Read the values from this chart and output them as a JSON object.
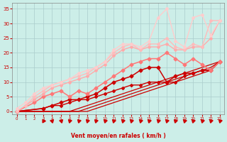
{
  "bg_color": "#cceee8",
  "grid_color": "#aacccc",
  "xlabel": "Vent moyen/en rafales ( km/h )",
  "xlabel_color": "#cc0000",
  "tick_color": "#cc0000",
  "xlim": [
    -0.5,
    23.5
  ],
  "ylim": [
    -1,
    37
  ],
  "xticks": [
    0,
    1,
    2,
    3,
    4,
    5,
    6,
    7,
    8,
    9,
    10,
    11,
    12,
    13,
    14,
    15,
    16,
    17,
    18,
    19,
    20,
    21,
    22,
    23
  ],
  "yticks": [
    0,
    5,
    10,
    15,
    20,
    25,
    30,
    35
  ],
  "lines": [
    {
      "comment": "straight line 1 - dark red, nearly linear 0->17",
      "x": [
        0,
        1,
        2,
        3,
        4,
        5,
        6,
        7,
        8,
        9,
        10,
        11,
        12,
        13,
        14,
        15,
        16,
        17,
        18,
        19,
        20,
        21,
        22,
        23
      ],
      "y": [
        0,
        0,
        0,
        0,
        0,
        0,
        0,
        0,
        0,
        1,
        2,
        3,
        4,
        5,
        6,
        7,
        8,
        9,
        10,
        11,
        12,
        13,
        14,
        17
      ],
      "color": "#cc0000",
      "lw": 0.9,
      "marker": null,
      "ms": 0
    },
    {
      "comment": "straight line 2 - dark red slightly above",
      "x": [
        0,
        1,
        2,
        3,
        4,
        5,
        6,
        7,
        8,
        9,
        10,
        11,
        12,
        13,
        14,
        15,
        16,
        17,
        18,
        19,
        20,
        21,
        22,
        23
      ],
      "y": [
        0,
        0,
        0,
        0,
        0,
        0,
        0,
        0,
        1,
        2,
        3,
        4,
        5,
        6,
        7,
        8,
        9,
        10,
        11,
        12,
        13,
        14,
        15,
        17
      ],
      "color": "#cc0000",
      "lw": 0.9,
      "marker": null,
      "ms": 0
    },
    {
      "comment": "straight line 3 - dark red slightly higher",
      "x": [
        0,
        1,
        2,
        3,
        4,
        5,
        6,
        7,
        8,
        9,
        10,
        11,
        12,
        13,
        14,
        15,
        16,
        17,
        18,
        19,
        20,
        21,
        22,
        23
      ],
      "y": [
        0,
        0,
        0,
        0,
        0,
        0,
        0,
        1,
        2,
        3,
        4,
        5,
        6,
        7,
        8,
        9,
        10,
        11,
        12,
        13,
        14,
        15,
        16,
        17
      ],
      "color": "#cc0000",
      "lw": 0.9,
      "marker": null,
      "ms": 0
    },
    {
      "comment": "jagged dark red with markers - lower group",
      "x": [
        0,
        3,
        4,
        5,
        6,
        7,
        8,
        9,
        10,
        11,
        12,
        13,
        14,
        15,
        16,
        17,
        18,
        19,
        20,
        21,
        22,
        23
      ],
      "y": [
        0,
        1,
        2,
        2,
        3,
        4,
        4,
        5,
        6,
        7,
        8,
        9,
        9,
        10,
        10,
        10,
        10,
        12,
        13,
        14,
        14,
        17
      ],
      "color": "#cc0000",
      "lw": 1.0,
      "marker": "D",
      "ms": 2.0
    },
    {
      "comment": "jagged dark red with markers - middle with dip",
      "x": [
        0,
        3,
        4,
        5,
        6,
        7,
        8,
        9,
        10,
        11,
        12,
        13,
        14,
        15,
        16,
        17,
        18,
        19,
        20,
        21,
        22,
        23
      ],
      "y": [
        0,
        1,
        2,
        3,
        4,
        4,
        5,
        6,
        8,
        10,
        11,
        12,
        14,
        15,
        15,
        10,
        12,
        13,
        13,
        14,
        14,
        17
      ],
      "color": "#cc0000",
      "lw": 1.1,
      "marker": "D",
      "ms": 2.5
    },
    {
      "comment": "medium pink with diamond markers - moderate wind",
      "x": [
        0,
        2,
        3,
        4,
        5,
        6,
        7,
        8,
        9,
        10,
        11,
        12,
        13,
        14,
        15,
        16,
        17,
        18,
        19,
        20,
        21,
        22,
        23
      ],
      "y": [
        0,
        3,
        5,
        6,
        7,
        5,
        7,
        6,
        8,
        10,
        12,
        14,
        16,
        17,
        18,
        18,
        20,
        18,
        16,
        18,
        16,
        14,
        17
      ],
      "color": "#ff7777",
      "lw": 1.1,
      "marker": "D",
      "ms": 2.5
    },
    {
      "comment": "light pink - high irregular line 1",
      "x": [
        0,
        1,
        2,
        3,
        4,
        5,
        6,
        7,
        8,
        9,
        10,
        11,
        12,
        13,
        14,
        15,
        16,
        17,
        18,
        19,
        20,
        21,
        22,
        23
      ],
      "y": [
        0,
        2,
        4,
        6,
        8,
        9,
        10,
        11,
        12,
        14,
        16,
        19,
        21,
        22,
        21,
        22,
        22,
        23,
        21,
        21,
        22,
        22,
        25,
        31
      ],
      "color": "#ffaaaa",
      "lw": 1.0,
      "marker": "D",
      "ms": 2.0
    },
    {
      "comment": "light pink - high irregular line 2",
      "x": [
        0,
        1,
        2,
        3,
        4,
        5,
        6,
        7,
        8,
        9,
        10,
        11,
        12,
        13,
        14,
        15,
        16,
        17,
        18,
        19,
        20,
        21,
        22,
        23
      ],
      "y": [
        0,
        2,
        5,
        7,
        9,
        10,
        11,
        12,
        13,
        15,
        17,
        20,
        22,
        23,
        21,
        23,
        23,
        25,
        22,
        21,
        23,
        22,
        31,
        31
      ],
      "color": "#ffbbbb",
      "lw": 1.0,
      "marker": "D",
      "ms": 2.0
    },
    {
      "comment": "very light pink - highest irregular line with spike",
      "x": [
        0,
        1,
        2,
        3,
        4,
        5,
        6,
        7,
        8,
        9,
        10,
        11,
        12,
        13,
        14,
        15,
        16,
        17,
        18,
        19,
        20,
        21,
        22,
        23
      ],
      "y": [
        1,
        3,
        6,
        8,
        9,
        10,
        11,
        13,
        14,
        15,
        17,
        21,
        23,
        23,
        22,
        24,
        32,
        35,
        24,
        22,
        32,
        33,
        26,
        31
      ],
      "color": "#ffcccc",
      "lw": 1.0,
      "marker": "D",
      "ms": 2.0
    }
  ],
  "wind_symbols": [
    3,
    4,
    5,
    6,
    7,
    8,
    9,
    10,
    11,
    12,
    13,
    14,
    15,
    16,
    17,
    18,
    19,
    20,
    21,
    22,
    23
  ],
  "wind_symbol_angles": [
    90,
    45,
    45,
    315,
    315,
    315,
    315,
    315,
    315,
    315,
    315,
    315,
    315,
    315,
    315,
    315,
    315,
    315,
    315,
    315,
    315
  ],
  "arrow_color": "#cc0000"
}
